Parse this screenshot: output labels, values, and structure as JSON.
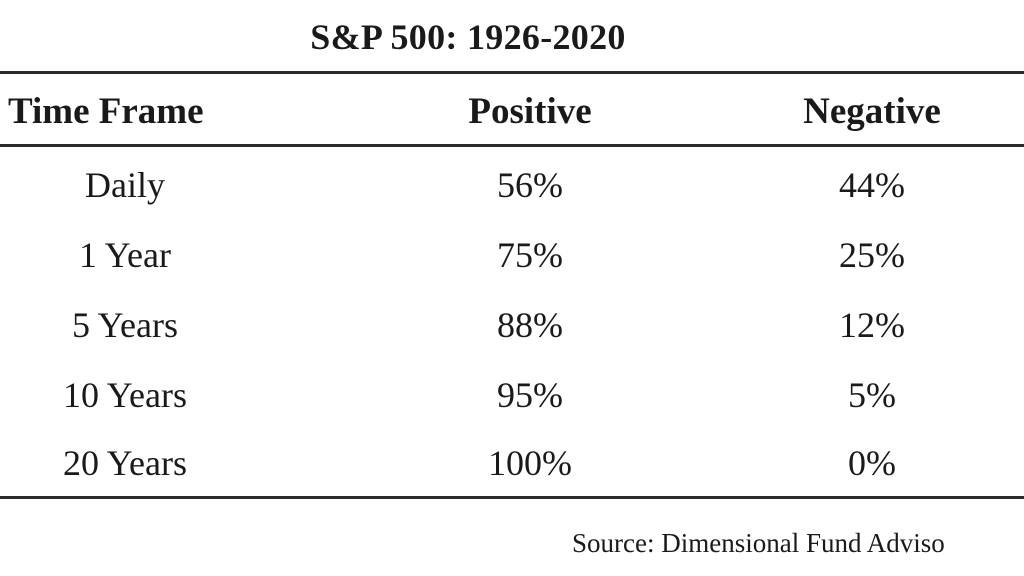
{
  "title": "S&P 500: 1926-2020",
  "headers": {
    "time_frame": "Time Frame",
    "positive": "Positive",
    "negative": "Negative"
  },
  "rows": [
    {
      "time_frame": "Daily",
      "positive": "56%",
      "negative": "44%"
    },
    {
      "time_frame": "1 Year",
      "positive": "75%",
      "negative": "25%"
    },
    {
      "time_frame": "5 Years",
      "positive": "88%",
      "negative": "12%"
    },
    {
      "time_frame": "10 Years",
      "positive": "95%",
      "negative": "5%"
    },
    {
      "time_frame": "20 Years",
      "positive": "100%",
      "negative": "0%"
    }
  ],
  "source": "Source: Dimensional Fund Adviso"
}
